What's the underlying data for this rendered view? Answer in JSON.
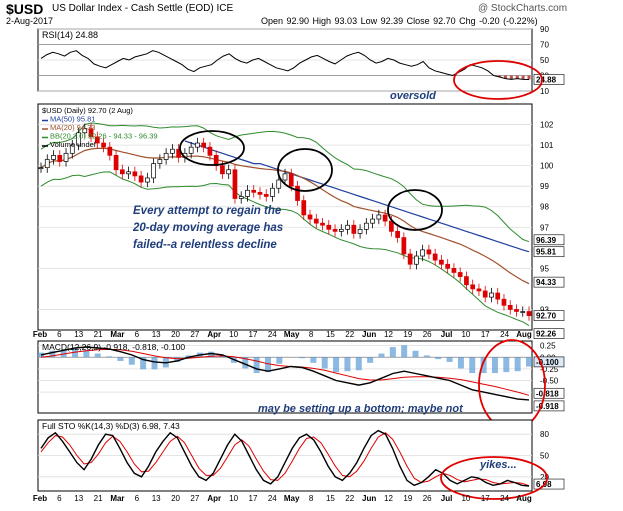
{
  "header": {
    "symbol": "$USD",
    "name": "US Dollar Index - Cash Settle (EOD) ICE",
    "date": "2-Aug-2017",
    "ohlc": "Open 92.90  High 93.03  Low 92.39  Close 92.70  Chg -0.20 (-0.22%)",
    "watermark": "@ StockCharts.com"
  },
  "chart_data": [
    {
      "id": "rsi",
      "type": "line",
      "legend": "RSI(14) 24.88",
      "ylim": [
        10,
        90
      ],
      "ticks": [
        "90",
        "70",
        "50",
        "30",
        "10"
      ],
      "tick_values": [
        90,
        70,
        50,
        30,
        10
      ],
      "value_label": "24.88",
      "annotation": "oversold",
      "values": [
        52,
        57,
        60,
        58,
        55,
        60,
        62,
        56,
        52,
        45,
        42,
        40,
        44,
        48,
        52,
        50,
        54,
        56,
        58,
        62,
        60,
        56,
        52,
        48,
        44,
        38,
        35,
        40,
        42,
        44,
        50,
        55,
        58,
        52,
        48,
        46,
        50,
        52,
        48,
        44,
        40,
        38,
        36,
        40,
        46,
        50,
        54,
        56,
        52,
        48,
        45,
        50,
        55,
        58,
        60,
        56,
        50,
        46,
        48,
        52,
        50,
        46,
        44,
        42,
        44,
        48,
        40,
        36,
        34,
        32,
        30,
        34,
        38,
        44,
        42,
        40,
        36,
        30,
        28,
        26,
        25,
        26,
        25,
        24.88
      ]
    },
    {
      "id": "price",
      "type": "candlestick",
      "legend": [
        "$USD (Daily) 92.70 (2 Aug)",
        "MA(50) 95.81",
        "MA(20) 94.33",
        "BB(20,2.0) 92.26 - 94.33 - 96.39",
        "Volume undef"
      ],
      "ylim": [
        92,
        103
      ],
      "ticks": [
        "102",
        "101",
        "100",
        "99",
        "98",
        "97",
        "95",
        "93"
      ],
      "tick_values": [
        102,
        101,
        100,
        99,
        98,
        97,
        95,
        93
      ],
      "price_labels": [
        "96.39",
        "95.81",
        "94.33",
        "92.70",
        "92.26"
      ],
      "price_label_values": [
        96.39,
        95.81,
        94.33,
        92.7,
        92.26
      ],
      "annotation": [
        "Every attempt to regain the",
        "20-day moving average has",
        "failed--a relentless decline"
      ],
      "x_labels": [
        "Feb",
        "6",
        "13",
        "21",
        "Mar",
        "6",
        "13",
        "20",
        "27",
        "Apr",
        "10",
        "17",
        "24",
        "May",
        "8",
        "15",
        "22",
        "Jun",
        "12",
        "19",
        "26",
        "Jul",
        "10",
        "17",
        "24",
        "Aug"
      ],
      "close": [
        99.9,
        100.3,
        100.5,
        100.2,
        100.6,
        101.0,
        101.6,
        101.8,
        101.4,
        101.1,
        100.9,
        100.5,
        99.8,
        99.6,
        99.7,
        99.5,
        99.2,
        99.4,
        100.1,
        100.3,
        100.6,
        100.8,
        100.4,
        100.6,
        100.9,
        101.1,
        100.9,
        100.5,
        100.0,
        99.6,
        99.8,
        98.4,
        98.5,
        98.8,
        98.7,
        98.6,
        98.5,
        98.9,
        99.3,
        99.6,
        99.0,
        98.3,
        97.6,
        97.4,
        97.2,
        97.1,
        96.9,
        96.8,
        96.9,
        97.1,
        96.7,
        96.9,
        97.2,
        97.4,
        97.6,
        97.3,
        96.8,
        96.5,
        95.7,
        95.2,
        95.6,
        95.9,
        95.7,
        95.4,
        95.2,
        95.0,
        94.8,
        94.6,
        94.2,
        94.0,
        93.9,
        93.6,
        93.8,
        93.5,
        93.2,
        93.0,
        92.9,
        92.9,
        92.7
      ],
      "ma50": [
        101.2,
        101.1,
        101.0,
        100.9,
        100.8,
        100.7,
        100.6,
        100.5,
        100.4,
        100.3,
        100.2,
        100.1,
        100.1,
        100.0,
        99.9,
        99.8,
        99.7,
        99.6,
        99.5,
        99.4,
        99.3,
        99.2,
        99.1,
        99.0,
        98.9,
        98.8,
        98.7,
        98.6,
        98.5,
        98.4,
        98.3,
        98.2,
        98.1,
        98.0,
        97.9,
        97.8,
        97.7,
        97.6,
        97.5,
        97.4,
        97.3,
        97.2,
        97.1,
        97.0,
        96.9,
        96.8,
        96.7,
        96.6,
        96.5,
        96.4,
        96.3,
        96.2,
        96.1,
        96.0,
        95.9,
        95.81
      ]
    },
    {
      "id": "macd",
      "type": "line",
      "legend": "MACD(12,26,9) -0.918, -0.818, -0.100",
      "ylim": [
        -1.2,
        0.35
      ],
      "ticks": [
        "0.25",
        "0.00",
        "-0.25",
        "-0.50",
        "-0.75"
      ],
      "tick_values": [
        0.25,
        0,
        -0.25,
        -0.5,
        -0.75
      ],
      "value_labels": [
        "-0.100",
        "-0.818",
        "-0.918"
      ],
      "annotation": "may be setting up a bottom; maybe not",
      "macd": [
        0.05,
        0.1,
        0.15,
        0.2,
        0.22,
        0.2,
        0.18,
        0.12,
        0.05,
        -0.05,
        -0.1,
        -0.12,
        -0.08,
        0,
        0.05,
        0.08,
        0.05,
        -0.05,
        -0.15,
        -0.25,
        -0.3,
        -0.25,
        -0.2,
        -0.22,
        -0.3,
        -0.4,
        -0.5,
        -0.55,
        -0.6,
        -0.55,
        -0.45,
        -0.35,
        -0.3,
        -0.35,
        -0.4,
        -0.45,
        -0.5,
        -0.6,
        -0.7,
        -0.75,
        -0.8,
        -0.85,
        -0.9,
        -0.918
      ],
      "signal": [
        0.0,
        0.03,
        0.07,
        0.11,
        0.14,
        0.16,
        0.17,
        0.16,
        0.13,
        0.08,
        0.03,
        -0.01,
        -0.03,
        -0.02,
        0,
        0.02,
        0.03,
        0.01,
        -0.03,
        -0.08,
        -0.14,
        -0.18,
        -0.2,
        -0.21,
        -0.24,
        -0.28,
        -0.34,
        -0.4,
        -0.46,
        -0.49,
        -0.49,
        -0.46,
        -0.43,
        -0.42,
        -0.42,
        -0.43,
        -0.45,
        -0.48,
        -0.53,
        -0.58,
        -0.63,
        -0.69,
        -0.75,
        -0.818
      ]
    },
    {
      "id": "sto",
      "type": "line",
      "legend": "Full STO %K(14,3) %D(3) 6.98, 7.43",
      "ylim": [
        0,
        100
      ],
      "ticks": [
        "80",
        "50",
        "20"
      ],
      "tick_values": [
        80,
        50,
        20
      ],
      "value_label": "6.98",
      "annotation": "yikes...",
      "k": [
        60,
        75,
        82,
        70,
        55,
        40,
        30,
        45,
        65,
        80,
        78,
        60,
        40,
        25,
        20,
        35,
        55,
        70,
        82,
        75,
        55,
        35,
        20,
        15,
        25,
        45,
        65,
        80,
        70,
        50,
        30,
        15,
        10,
        20,
        40,
        60,
        75,
        80,
        72,
        55,
        35,
        20,
        15,
        25,
        40,
        60,
        78,
        85,
        80,
        60,
        35,
        15,
        8,
        12,
        20,
        30,
        25,
        15,
        10,
        15,
        20,
        18,
        12,
        8,
        10,
        15,
        12,
        8,
        6.98
      ],
      "d": [
        55,
        68,
        78,
        76,
        65,
        50,
        38,
        40,
        52,
        68,
        77,
        70,
        55,
        38,
        27,
        28,
        40,
        55,
        70,
        77,
        68,
        50,
        32,
        22,
        22,
        32,
        48,
        65,
        72,
        63,
        45,
        28,
        16,
        15,
        25,
        42,
        60,
        74,
        76,
        68,
        52,
        35,
        22,
        20,
        28,
        42,
        60,
        76,
        82,
        73,
        55,
        35,
        18,
        12,
        14,
        20,
        25,
        22,
        16,
        13,
        15,
        17,
        16,
        12,
        10,
        11,
        12,
        11,
        7.43
      ]
    }
  ]
}
